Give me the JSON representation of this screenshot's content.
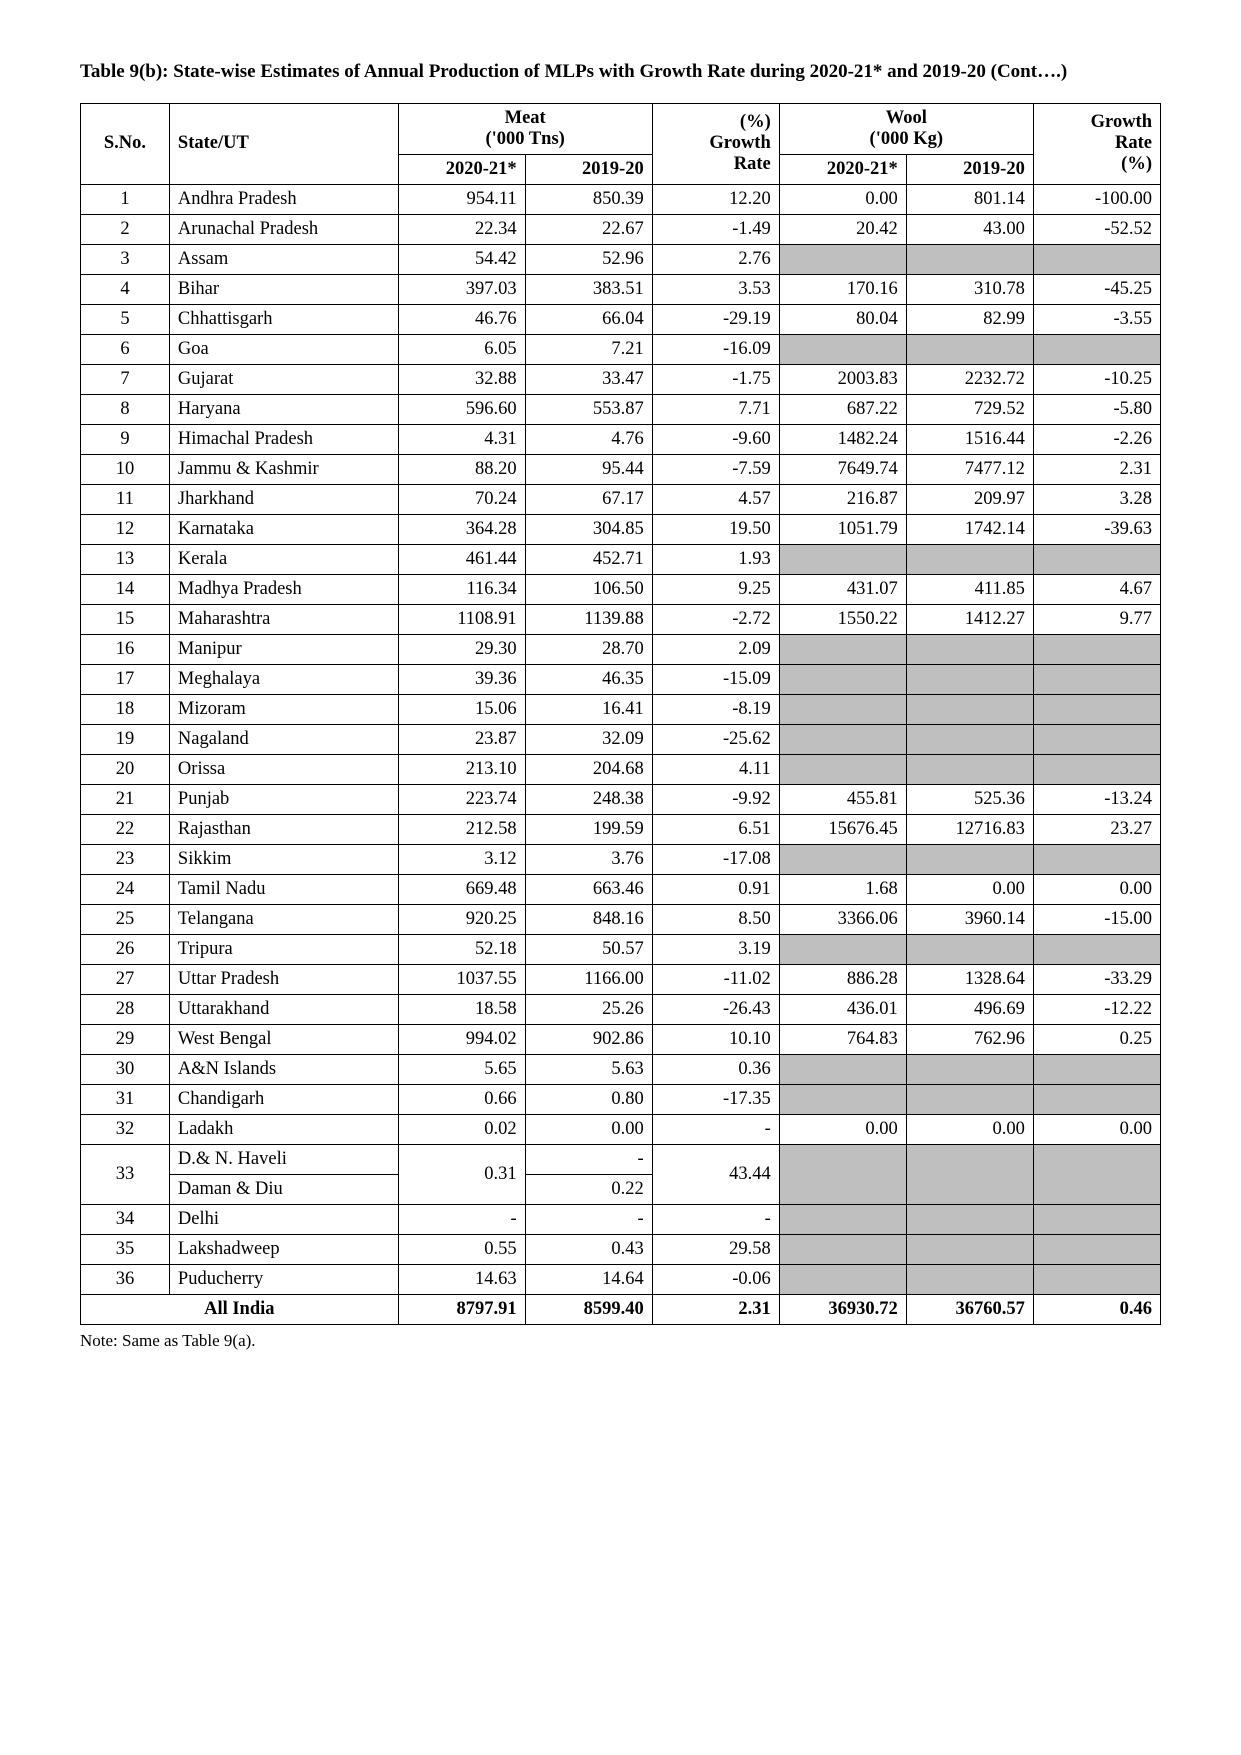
{
  "title": "Table 9(b): State-wise Estimates of Annual Production of MLPs with Growth Rate during 2020-21* and 2019-20 (Cont….)",
  "headers": {
    "sno": "S.No.",
    "state": "State/UT",
    "meat": "Meat<br>('000 Tns)",
    "meat_growth": "(%)<br>Growth<br>Rate",
    "wool": "Wool<br>('000 Kg)",
    "wool_growth": "Growth<br>Rate<br>(%)",
    "y1": "2020-21*",
    "y2": "2019-20"
  },
  "rows": [
    {
      "sno": "1",
      "state": "Andhra Pradesh",
      "m1": "954.11",
      "m2": "850.39",
      "mg": "12.20",
      "w1": "0.00",
      "w2": "801.14",
      "wg": "-100.00"
    },
    {
      "sno": "2",
      "state": "Arunachal Pradesh",
      "m1": "22.34",
      "m2": "22.67",
      "mg": "-1.49",
      "w1": "20.42",
      "w2": "43.00",
      "wg": "-52.52"
    },
    {
      "sno": "3",
      "state": "Assam",
      "m1": "54.42",
      "m2": "52.96",
      "mg": "2.76",
      "w1": null,
      "w2": null,
      "wg": null
    },
    {
      "sno": "4",
      "state": "Bihar",
      "m1": "397.03",
      "m2": "383.51",
      "mg": "3.53",
      "w1": "170.16",
      "w2": "310.78",
      "wg": "-45.25"
    },
    {
      "sno": "5",
      "state": "Chhattisgarh",
      "m1": "46.76",
      "m2": "66.04",
      "mg": "-29.19",
      "w1": "80.04",
      "w2": "82.99",
      "wg": "-3.55"
    },
    {
      "sno": "6",
      "state": "Goa",
      "m1": "6.05",
      "m2": "7.21",
      "mg": "-16.09",
      "w1": null,
      "w2": null,
      "wg": null
    },
    {
      "sno": "7",
      "state": "Gujarat",
      "m1": "32.88",
      "m2": "33.47",
      "mg": "-1.75",
      "w1": "2003.83",
      "w2": "2232.72",
      "wg": "-10.25"
    },
    {
      "sno": "8",
      "state": "Haryana",
      "m1": "596.60",
      "m2": "553.87",
      "mg": "7.71",
      "w1": "687.22",
      "w2": "729.52",
      "wg": "-5.80"
    },
    {
      "sno": "9",
      "state": "Himachal Pradesh",
      "m1": "4.31",
      "m2": "4.76",
      "mg": "-9.60",
      "w1": "1482.24",
      "w2": "1516.44",
      "wg": "-2.26"
    },
    {
      "sno": "10",
      "state": "Jammu & Kashmir",
      "m1": "88.20",
      "m2": "95.44",
      "mg": "-7.59",
      "w1": "7649.74",
      "w2": "7477.12",
      "wg": "2.31"
    },
    {
      "sno": "11",
      "state": "Jharkhand",
      "m1": "70.24",
      "m2": "67.17",
      "mg": "4.57",
      "w1": "216.87",
      "w2": "209.97",
      "wg": "3.28"
    },
    {
      "sno": "12",
      "state": "Karnataka",
      "m1": "364.28",
      "m2": "304.85",
      "mg": "19.50",
      "w1": "1051.79",
      "w2": "1742.14",
      "wg": "-39.63"
    },
    {
      "sno": "13",
      "state": "Kerala",
      "m1": "461.44",
      "m2": "452.71",
      "mg": "1.93",
      "w1": null,
      "w2": null,
      "wg": null
    },
    {
      "sno": "14",
      "state": "Madhya Pradesh",
      "m1": "116.34",
      "m2": "106.50",
      "mg": "9.25",
      "w1": "431.07",
      "w2": "411.85",
      "wg": "4.67"
    },
    {
      "sno": "15",
      "state": "Maharashtra",
      "m1": "1108.91",
      "m2": "1139.88",
      "mg": "-2.72",
      "w1": "1550.22",
      "w2": "1412.27",
      "wg": "9.77"
    },
    {
      "sno": "16",
      "state": "Manipur",
      "m1": "29.30",
      "m2": "28.70",
      "mg": "2.09",
      "w1": null,
      "w2": null,
      "wg": null
    },
    {
      "sno": "17",
      "state": "Meghalaya",
      "m1": "39.36",
      "m2": "46.35",
      "mg": "-15.09",
      "w1": null,
      "w2": null,
      "wg": null
    },
    {
      "sno": "18",
      "state": "Mizoram",
      "m1": "15.06",
      "m2": "16.41",
      "mg": "-8.19",
      "w1": null,
      "w2": null,
      "wg": null
    },
    {
      "sno": "19",
      "state": "Nagaland",
      "m1": "23.87",
      "m2": "32.09",
      "mg": "-25.62",
      "w1": null,
      "w2": null,
      "wg": null
    },
    {
      "sno": "20",
      "state": "Orissa",
      "m1": "213.10",
      "m2": "204.68",
      "mg": "4.11",
      "w1": null,
      "w2": null,
      "wg": null
    },
    {
      "sno": "21",
      "state": "Punjab",
      "m1": "223.74",
      "m2": "248.38",
      "mg": "-9.92",
      "w1": "455.81",
      "w2": "525.36",
      "wg": "-13.24"
    },
    {
      "sno": "22",
      "state": "Rajasthan",
      "m1": "212.58",
      "m2": "199.59",
      "mg": "6.51",
      "w1": "15676.45",
      "w2": "12716.83",
      "wg": "23.27"
    },
    {
      "sno": "23",
      "state": "Sikkim",
      "m1": "3.12",
      "m2": "3.76",
      "mg": "-17.08",
      "w1": null,
      "w2": null,
      "wg": null
    },
    {
      "sno": "24",
      "state": "Tamil Nadu",
      "m1": "669.48",
      "m2": "663.46",
      "mg": "0.91",
      "w1": "1.68",
      "w2": "0.00",
      "wg": "0.00"
    },
    {
      "sno": "25",
      "state": "Telangana",
      "m1": "920.25",
      "m2": "848.16",
      "mg": "8.50",
      "w1": "3366.06",
      "w2": "3960.14",
      "wg": "-15.00"
    },
    {
      "sno": "26",
      "state": "Tripura",
      "m1": "52.18",
      "m2": "50.57",
      "mg": "3.19",
      "w1": null,
      "w2": null,
      "wg": null
    },
    {
      "sno": "27",
      "state": "Uttar Pradesh",
      "m1": "1037.55",
      "m2": "1166.00",
      "mg": "-11.02",
      "w1": "886.28",
      "w2": "1328.64",
      "wg": "-33.29"
    },
    {
      "sno": "28",
      "state": "Uttarakhand",
      "m1": "18.58",
      "m2": "25.26",
      "mg": "-26.43",
      "w1": "436.01",
      "w2": "496.69",
      "wg": "-12.22"
    },
    {
      "sno": "29",
      "state": "West Bengal",
      "m1": "994.02",
      "m2": "902.86",
      "mg": "10.10",
      "w1": "764.83",
      "w2": "762.96",
      "wg": "0.25"
    },
    {
      "sno": "30",
      "state": "A&N Islands",
      "m1": "5.65",
      "m2": "5.63",
      "mg": "0.36",
      "w1": null,
      "w2": null,
      "wg": null
    },
    {
      "sno": "31",
      "state": "Chandigarh",
      "m1": "0.66",
      "m2": "0.80",
      "mg": "-17.35",
      "w1": null,
      "w2": null,
      "wg": null
    },
    {
      "sno": "32",
      "state": "Ladakh",
      "m1": "0.02",
      "m2": "0.00",
      "mg": "-",
      "w1": "0.00",
      "w2": "0.00",
      "wg": "0.00"
    },
    {
      "sno": "34",
      "state": "Delhi",
      "m1": "-",
      "m2": "-",
      "mg": "-",
      "w1": null,
      "w2": null,
      "wg": null
    },
    {
      "sno": "35",
      "state": "Lakshadweep",
      "m1": "0.55",
      "m2": "0.43",
      "mg": "29.58",
      "w1": null,
      "w2": null,
      "wg": null
    },
    {
      "sno": "36",
      "state": "Puducherry",
      "m1": "14.63",
      "m2": "14.64",
      "mg": "-0.06",
      "w1": null,
      "w2": null,
      "wg": null
    }
  ],
  "row33": {
    "sno": "33",
    "state_a": "D.& N. Haveli",
    "state_b": "Daman & Diu",
    "m1": "0.31",
    "m2_a": "-",
    "m2_b": "0.22",
    "mg": "43.44"
  },
  "total": {
    "label": "All India",
    "m1": "8797.91",
    "m2": "8599.40",
    "mg": "2.31",
    "w1": "36930.72",
    "w2": "36760.57",
    "wg": "0.46"
  },
  "note": "Note: Same as Table 9(a).",
  "blank_color": "#bfbfbf"
}
